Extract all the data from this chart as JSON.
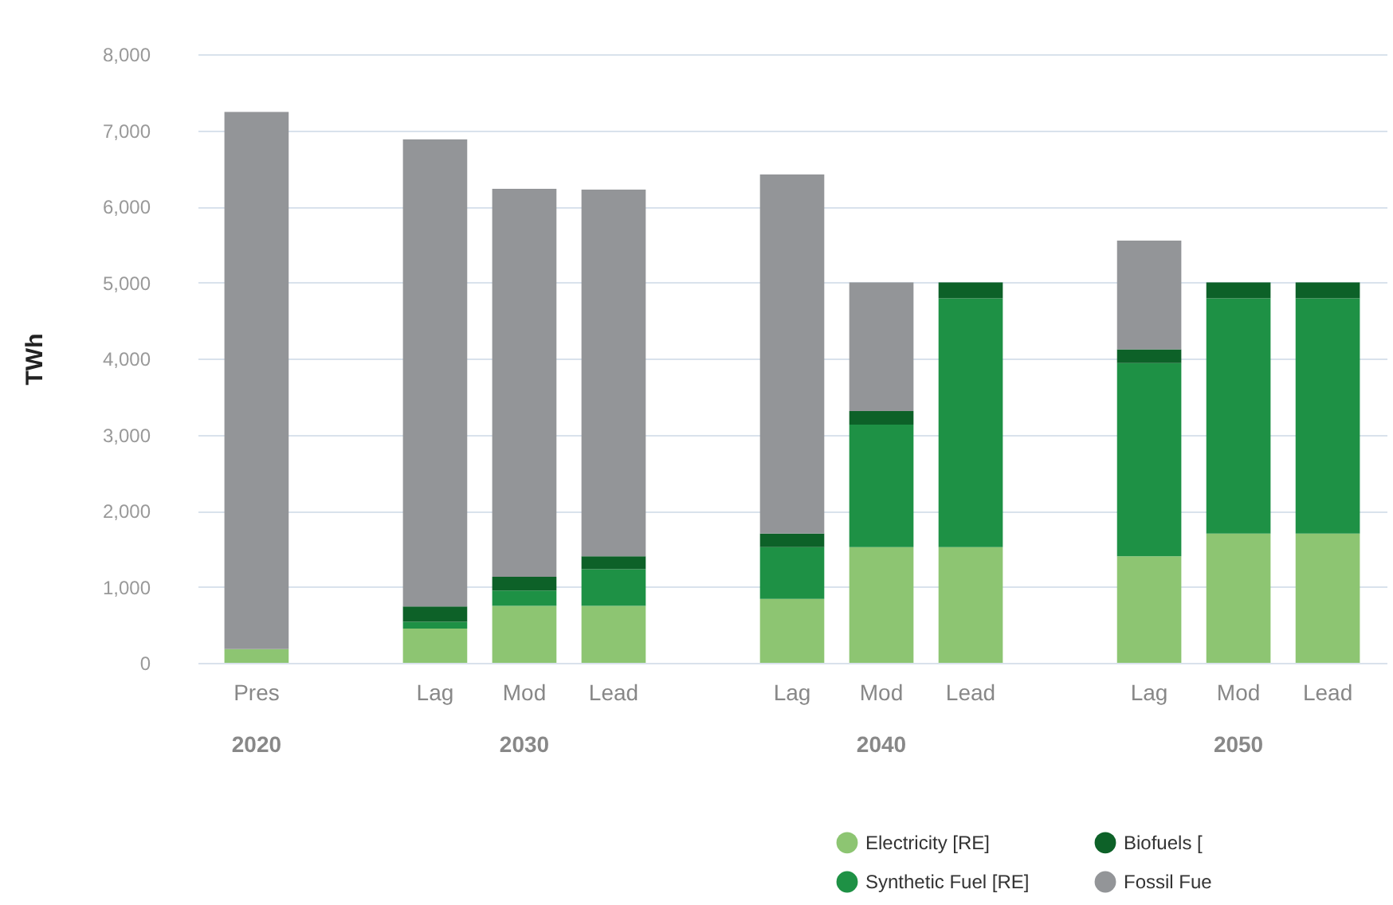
{
  "chart_data": {
    "type": "bar",
    "stacked": true,
    "ylabel": "TWh",
    "categories": [
      "Pres",
      null,
      "Lag",
      "Mod",
      "Lead",
      null,
      "Lag",
      "Mod",
      "Lead",
      null,
      "Lag",
      "Mod",
      "Lead"
    ],
    "series": [
      {
        "name": "Electricity [RE]",
        "color": "#8dc572",
        "values": [
          180,
          null,
          450,
          750,
          750,
          null,
          840,
          1520,
          1520,
          null,
          1400,
          1700,
          1700
        ]
      },
      {
        "name": "Synthetic Fuel [RE]",
        "color": "#1e9145",
        "values": [
          0,
          null,
          90,
          200,
          480,
          null,
          680,
          1610,
          3270,
          null,
          2540,
          3090,
          3090
        ]
      },
      {
        "name": "Biofuels [",
        "color": "#0d6128",
        "values": [
          0,
          null,
          200,
          180,
          170,
          null,
          180,
          180,
          210,
          null,
          180,
          210,
          210
        ]
      },
      {
        "name": "Fossil Fue",
        "color": "#939598",
        "values": [
          7060,
          null,
          6140,
          5100,
          4820,
          null,
          4720,
          1690,
          0,
          null,
          1430,
          0,
          0
        ]
      }
    ],
    "annotations": [
      "2020",
      "2030",
      "2040",
      "2050"
    ],
    "ylim": [
      0,
      8000
    ],
    "yticks": [
      0,
      {
        "value": 1000,
        "label": "1,000"
      },
      {
        "value": 2000,
        "label": "2,000"
      },
      {
        "value": 3000,
        "label": "3,000"
      },
      {
        "value": 4000,
        "label": "4,000"
      },
      {
        "value": 5000,
        "label": "5,000"
      },
      {
        "value": 6000,
        "label": "6,000"
      },
      {
        "value": 7000,
        "label": "7,000"
      },
      {
        "value": 8000,
        "label": "8,000"
      }
    ],
    "grid": "y",
    "legend": "bottom right"
  }
}
